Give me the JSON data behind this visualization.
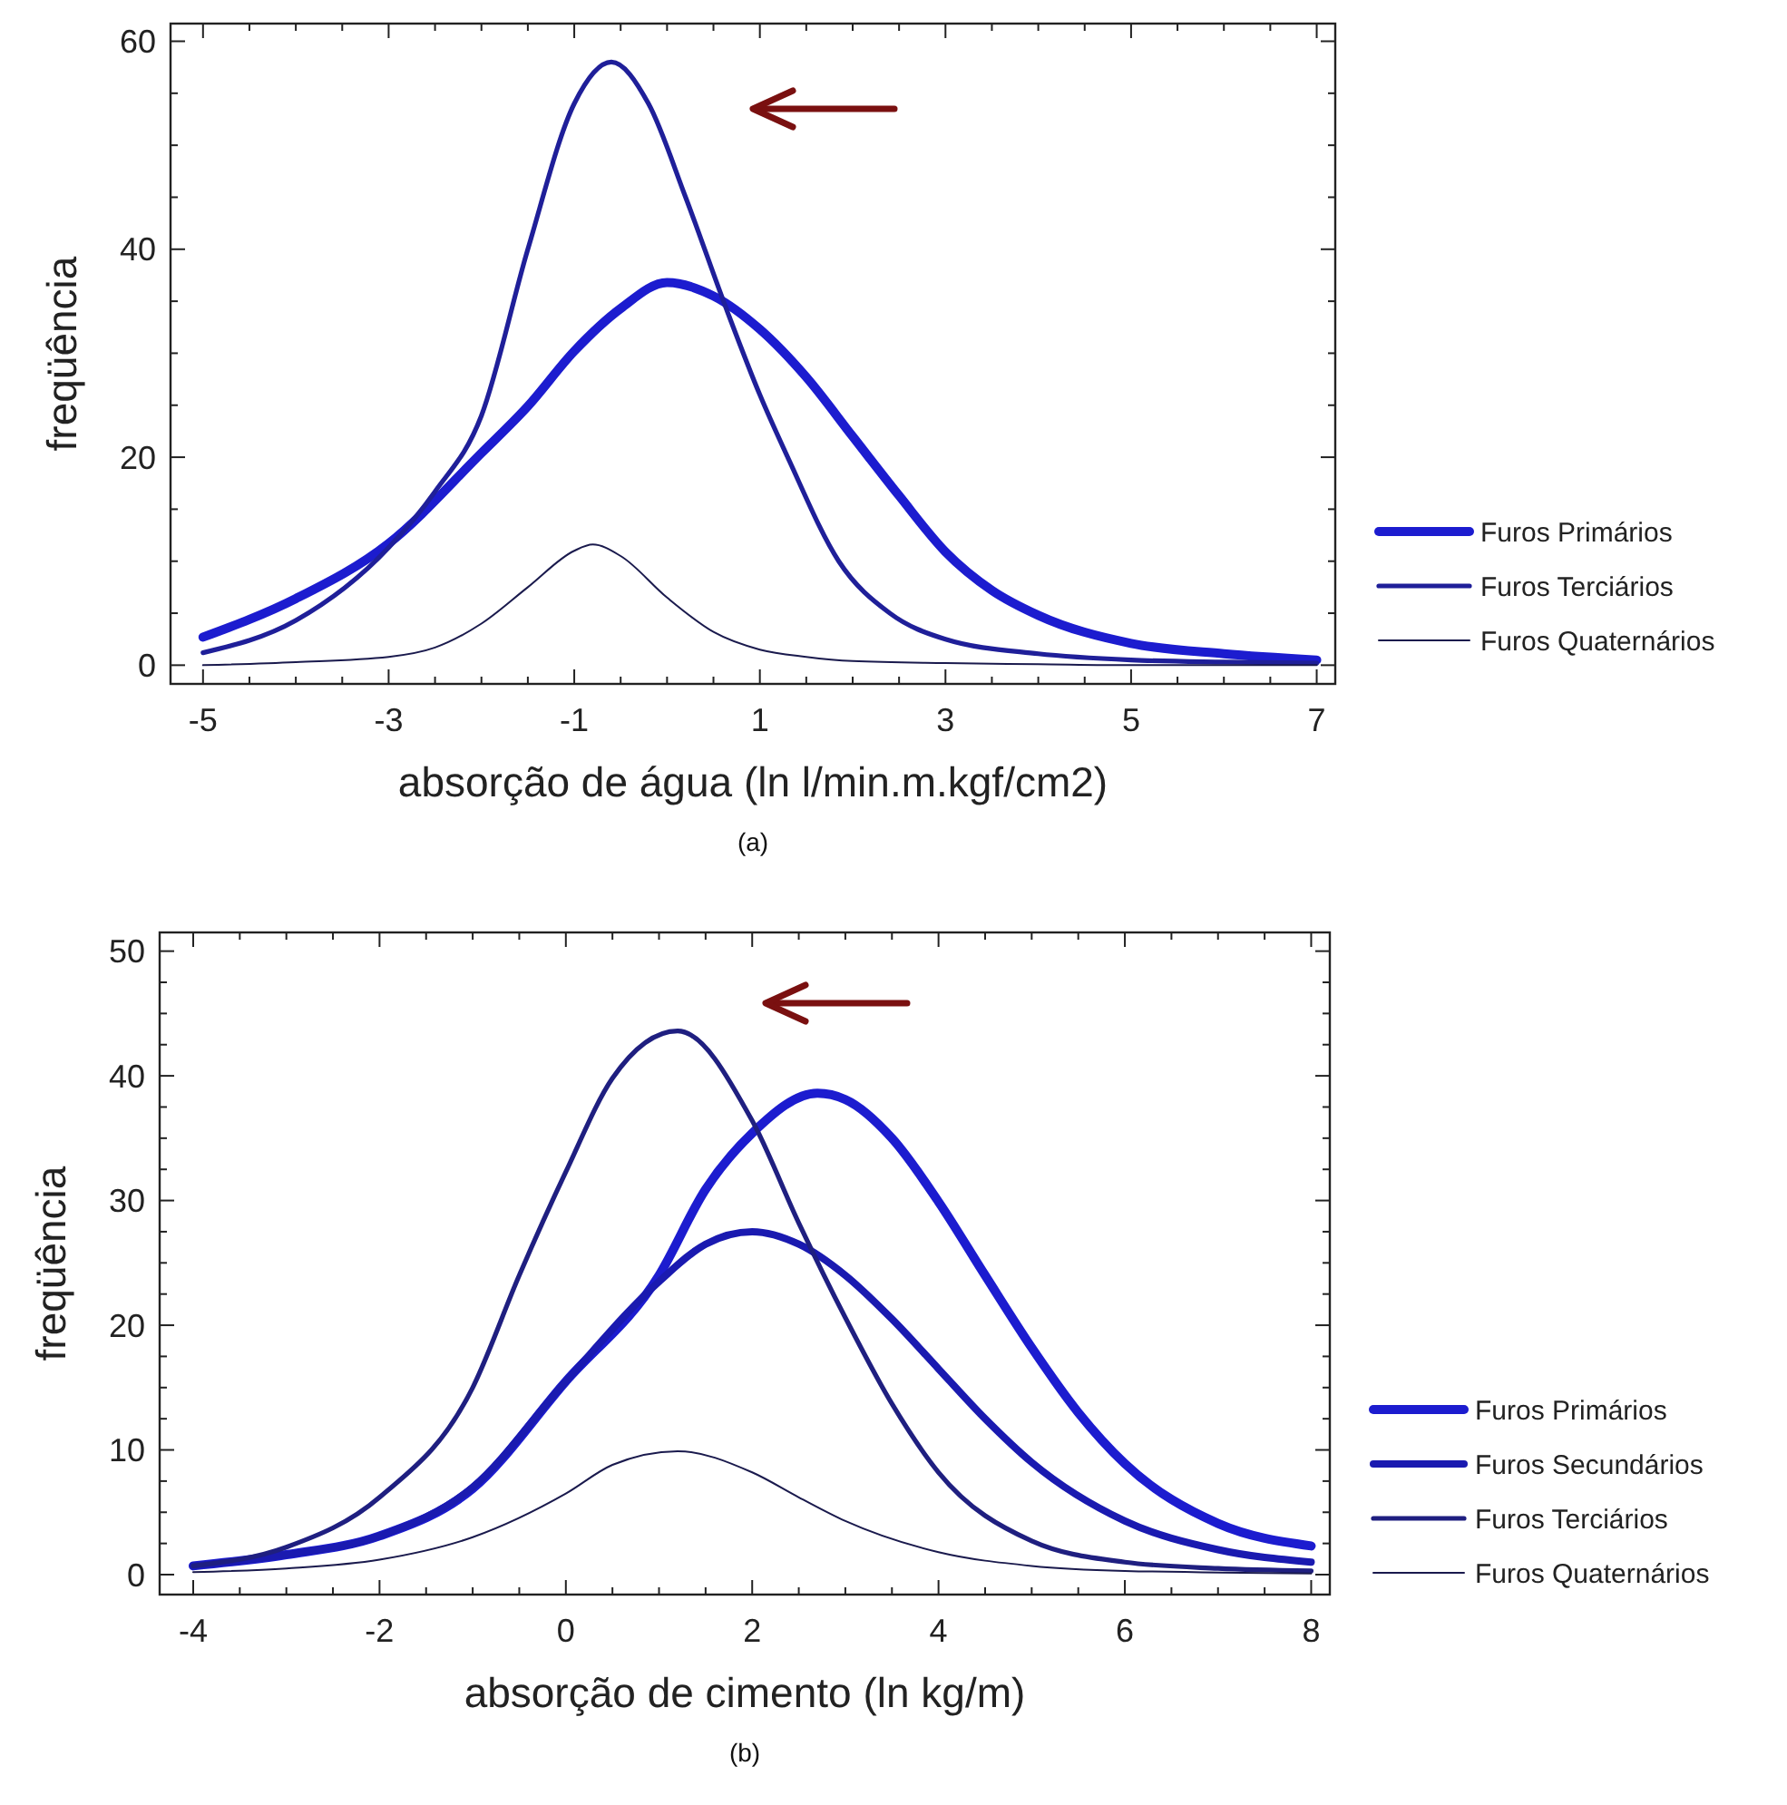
{
  "chart_data": [
    {
      "type": "line",
      "xlabel": "absorção de água (ln l/min.m.kgf/cm2)",
      "ylabel": "freqüência",
      "annotations": [
        "(a)"
      ],
      "legend": "right",
      "grid": false,
      "xlim": [
        -5.35,
        7.2
      ],
      "ylim": [
        -1.8,
        61.7
      ],
      "xticks": [
        -5,
        {
          "value": -4.5,
          "label": null
        },
        {
          "value": -4,
          "label": null
        },
        {
          "value": -3.5,
          "label": null
        },
        -3,
        {
          "value": -2.5,
          "label": null
        },
        {
          "value": -2,
          "label": null
        },
        {
          "value": -1.5,
          "label": null
        },
        -1,
        {
          "value": -0.5,
          "label": null
        },
        {
          "value": 0,
          "label": null
        },
        {
          "value": 0.5,
          "label": null
        },
        1,
        {
          "value": 1.5,
          "label": null
        },
        {
          "value": 2,
          "label": null
        },
        {
          "value": 2.5,
          "label": null
        },
        3,
        {
          "value": 3.5,
          "label": null
        },
        {
          "value": 4,
          "label": null
        },
        {
          "value": 4.5,
          "label": null
        },
        5,
        {
          "value": 5.5,
          "label": null
        },
        {
          "value": 6,
          "label": null
        },
        {
          "value": 6.5,
          "label": null
        },
        7
      ],
      "yticks": [
        0,
        {
          "value": 5,
          "label": null
        },
        {
          "value": 10,
          "label": null
        },
        {
          "value": 15,
          "label": null
        },
        20,
        {
          "value": 25,
          "label": null
        },
        {
          "value": 30,
          "label": null
        },
        {
          "value": 35,
          "label": null
        },
        40,
        {
          "value": 45,
          "label": null
        },
        {
          "value": 50,
          "label": null
        },
        {
          "value": 55,
          "label": null
        },
        60
      ],
      "series": [
        {
          "name": "Furos Primários",
          "color": "#1c1ccf",
          "x": [
            -5,
            -4,
            -3,
            -2,
            -1.5,
            -1,
            -0.5,
            0,
            0.5,
            1,
            1.5,
            2,
            2.5,
            3,
            3.5,
            4,
            5,
            6,
            7
          ],
          "values": [
            2.7,
            6.4,
            11.7,
            20.4,
            24.9,
            30.2,
            34.3,
            36.8,
            35.5,
            32.3,
            27.7,
            22,
            16.3,
            10.9,
            7.2,
            4.8,
            2.1,
            1.1,
            0.5
          ]
        },
        {
          "name": "Furos Terciários",
          "color": "#1f1f99",
          "x": [
            -5,
            -4,
            -3,
            -2.5,
            -2,
            -1.5,
            -1,
            -0.6,
            -0.2,
            0.2,
            0.65,
            1,
            1.3,
            1.85,
            2.4,
            3,
            4,
            5,
            6,
            7
          ],
          "values": [
            1.2,
            4.3,
            11.3,
            16.7,
            24,
            40,
            54,
            58,
            54,
            45,
            34,
            26,
            20,
            10,
            5,
            2.5,
            1.1,
            0.5,
            0.3,
            0.2
          ]
        },
        {
          "name": "Furos Quaternários",
          "color": "#1a1a4d",
          "x": [
            -5,
            -4,
            -3,
            -2.5,
            -2,
            -1.5,
            -1,
            -0.8,
            -0.5,
            0,
            0.5,
            1,
            1.5,
            2,
            3,
            4,
            5,
            6,
            7
          ],
          "values": [
            0,
            0.3,
            0.8,
            1.7,
            4,
            7.5,
            11,
            11.6,
            10.5,
            6.5,
            3.2,
            1.5,
            0.8,
            0.4,
            0.2,
            0.1,
            0,
            0,
            0
          ]
        }
      ]
    },
    {
      "type": "line",
      "xlabel": "absorção de cimento (ln kg/m)",
      "ylabel": "freqüência",
      "annotations": [
        "(b)"
      ],
      "legend": "right",
      "grid": false,
      "xlim": [
        -4.36,
        8.2
      ],
      "ylim": [
        -1.6,
        51.5
      ],
      "xticks": [
        -4,
        {
          "value": -3.5,
          "label": null
        },
        {
          "value": -3,
          "label": null
        },
        {
          "value": -2.5,
          "label": null
        },
        -2,
        {
          "value": -1.5,
          "label": null
        },
        {
          "value": -1,
          "label": null
        },
        {
          "value": -0.5,
          "label": null
        },
        0,
        {
          "value": 0.5,
          "label": null
        },
        {
          "value": 1,
          "label": null
        },
        {
          "value": 1.5,
          "label": null
        },
        2,
        {
          "value": 2.5,
          "label": null
        },
        {
          "value": 3,
          "label": null
        },
        {
          "value": 3.5,
          "label": null
        },
        4,
        {
          "value": 4.5,
          "label": null
        },
        {
          "value": 5,
          "label": null
        },
        {
          "value": 5.5,
          "label": null
        },
        6,
        {
          "value": 6.5,
          "label": null
        },
        {
          "value": 7,
          "label": null
        },
        {
          "value": 7.5,
          "label": null
        },
        8
      ],
      "yticks": [
        0,
        {
          "value": 2.5,
          "label": null
        },
        {
          "value": 5,
          "label": null
        },
        {
          "value": 7.5,
          "label": null
        },
        10,
        {
          "value": 12.5,
          "label": null
        },
        {
          "value": 15,
          "label": null
        },
        {
          "value": 17.5,
          "label": null
        },
        20,
        {
          "value": 22.5,
          "label": null
        },
        {
          "value": 25,
          "label": null
        },
        {
          "value": 27.5,
          "label": null
        },
        30,
        {
          "value": 32.5,
          "label": null
        },
        {
          "value": 35,
          "label": null
        },
        {
          "value": 37.5,
          "label": null
        },
        40,
        {
          "value": 42.5,
          "label": null
        },
        {
          "value": 45,
          "label": null
        },
        {
          "value": 47.5,
          "label": null
        },
        50
      ],
      "series": [
        {
          "name": "Furos Primários",
          "color": "#1c1ccf",
          "x": [
            -4,
            -3,
            -2,
            -1,
            0,
            1,
            1.5,
            2,
            2.7,
            3,
            3.5,
            4,
            4.5,
            5,
            5.5,
            6,
            7,
            8
          ],
          "values": [
            0.7,
            1.6,
            3.1,
            6.9,
            15.5,
            24,
            30.9,
            35.4,
            38.6,
            38.1,
            35,
            29.9,
            24,
            18.2,
            13,
            8.9,
            4.1,
            2.3
          ]
        },
        {
          "name": "Furos Secundários",
          "color": "#1a1ab0",
          "x": [
            -4,
            -3,
            -2,
            -1,
            0,
            1,
            1.5,
            2,
            2.5,
            3,
            3.5,
            4,
            4.5,
            5,
            6,
            7,
            8
          ],
          "values": [
            0.7,
            1.6,
            3.1,
            7,
            15.5,
            23.5,
            26.5,
            27.5,
            26.5,
            24,
            20.5,
            16.5,
            12.5,
            9,
            4.3,
            2,
            1
          ]
        },
        {
          "name": "Furos Terciários",
          "color": "#1f1f80",
          "x": [
            -4,
            -3,
            -2,
            -1,
            -0.5,
            0,
            0.5,
            1.2,
            2,
            2.5,
            3,
            3.5,
            4,
            5,
            6,
            7,
            8
          ],
          "values": [
            0.7,
            2.2,
            6.2,
            15,
            24,
            32.3,
            39.8,
            43.6,
            36.4,
            28.2,
            20.6,
            13.7,
            8.2,
            2.7,
            1,
            0.5,
            0.3
          ]
        },
        {
          "name": "Furos Quaternários",
          "color": "#1a1a4d",
          "x": [
            -4,
            -3,
            -2,
            -1,
            0,
            0.5,
            1.2,
            2,
            2.5,
            3,
            4,
            5,
            6,
            8
          ],
          "values": [
            0.2,
            0.5,
            1.2,
            3,
            6.5,
            8.8,
            9.9,
            8.2,
            6.2,
            4.3,
            1.8,
            0.7,
            0.3,
            0.1
          ]
        }
      ]
    }
  ]
}
